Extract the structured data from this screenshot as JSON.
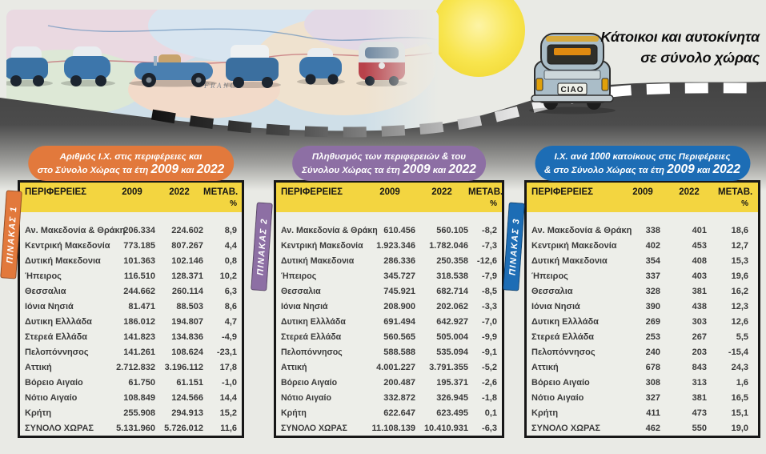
{
  "banner": {
    "title_line1": "Κάτοικοι και αυτοκίνητα",
    "title_line2": "σε σύνολο χώρας",
    "car_plate": "CIAO",
    "map_label": "FRANCE"
  },
  "colors": {
    "header_yellow": "#f3d540",
    "table1_accent": "#e2793c",
    "table2_accent": "#8d6fa4",
    "table3_accent": "#1d6db5"
  },
  "tables": [
    {
      "tab_label": "ΠΙΝΑΚΑΣ 1",
      "accent_color": "#e2793c",
      "title_line1": "Αριθμός Ι.Χ. στις περιφέρειες και",
      "title_line2_prefix": "στο Σύνολο Χώρας τα έτη ",
      "title_year_a": "2009",
      "title_conj": " και ",
      "title_year_b": "2022",
      "columns": {
        "region": "ΠΕΡΙΦΕΡΕΙΕΣ",
        "a": "2009",
        "b": "2022",
        "change": "ΜΕΤΑΒ.",
        "change_unit": "%"
      },
      "rows": [
        {
          "region": "Αν. Μακεδονία & Θράκη",
          "a": "206.334",
          "b": "224.602",
          "change": "8,9"
        },
        {
          "region": "Κεντρική Μακεδονία",
          "a": "773.185",
          "b": "807.267",
          "change": "4,4"
        },
        {
          "region": "Δυτική Μακεδονια",
          "a": "101.363",
          "b": "102.146",
          "change": "0,8"
        },
        {
          "region": "Ήπειρος",
          "a": "116.510",
          "b": "128.371",
          "change": "10,2"
        },
        {
          "region": "Θεσσαλια",
          "a": "244.662",
          "b": "260.114",
          "change": "6,3"
        },
        {
          "region": "Ιόνια Νησιά",
          "a": "81.471",
          "b": "88.503",
          "change": "8,6"
        },
        {
          "region": "Δυτικη Ελλλάδα",
          "a": "186.012",
          "b": "194.807",
          "change": "4,7"
        },
        {
          "region": "Στερεά Ελλάδα",
          "a": "141.823",
          "b": "134.836",
          "change": "-4,9"
        },
        {
          "region": "Πελοπόννησος",
          "a": "141.261",
          "b": "108.624",
          "change": "-23,1"
        },
        {
          "region": "Αττική",
          "a": "2.712.832",
          "b": "3.196.112",
          "change": "17,8"
        },
        {
          "region": "Βόρειο Αιγαίο",
          "a": "61.750",
          "b": "61.151",
          "change": "-1,0"
        },
        {
          "region": "Νότιο Αιγαίο",
          "a": "108.849",
          "b": "124.566",
          "change": "14,4"
        },
        {
          "region": "Κρήτη",
          "a": "255.908",
          "b": "294.913",
          "change": "15,2"
        },
        {
          "region": "ΣΥΝΟΛΟ ΧΩΡΑΣ",
          "a": "5.131.960",
          "b": "5.726.012",
          "change": "11,6"
        }
      ]
    },
    {
      "tab_label": "ΠΙΝΑΚΑΣ 2",
      "accent_color": "#8d6fa4",
      "title_line1": "Πληθυσμός των περιφερειών & του",
      "title_line2_prefix": "Σύνολου Χώρας τα έτη ",
      "title_year_a": "2009",
      "title_conj": " και ",
      "title_year_b": "2022",
      "columns": {
        "region": "ΠΕΡΙΦΕΡΕΙΕΣ",
        "a": "2009",
        "b": "2022",
        "change": "ΜΕΤΑΒ.",
        "change_unit": "%"
      },
      "rows": [
        {
          "region": "Αν. Μακεδονία & Θράκη",
          "a": "610.456",
          "b": "560.105",
          "change": "-8,2"
        },
        {
          "region": "Κεντρική Μακεδονία",
          "a": "1.923.346",
          "b": "1.782.046",
          "change": "-7,3"
        },
        {
          "region": "Δυτική Μακεδονια",
          "a": "286.336",
          "b": "250.358",
          "change": "-12,6"
        },
        {
          "region": "Ήπειρος",
          "a": "345.727",
          "b": "318.538",
          "change": "-7,9"
        },
        {
          "region": "Θεσσαλια",
          "a": "745.921",
          "b": "682.714",
          "change": "-8,5"
        },
        {
          "region": "Ιόνια Νησιά",
          "a": "208.900",
          "b": "202.062",
          "change": "-3,3"
        },
        {
          "region": "Δυτικη Ελλλάδα",
          "a": "691.494",
          "b": "642.927",
          "change": "-7,0"
        },
        {
          "region": "Στερεά Ελλάδα",
          "a": "560.565",
          "b": "505.004",
          "change": "-9,9"
        },
        {
          "region": "Πελοπόννησος",
          "a": "588.588",
          "b": "535.094",
          "change": "-9,1"
        },
        {
          "region": "Αττική",
          "a": "4.001.227",
          "b": "3.791.355",
          "change": "-5,2"
        },
        {
          "region": "Βόρειο Αιγαίο",
          "a": "200.487",
          "b": "195.371",
          "change": "-2,6"
        },
        {
          "region": "Νότιο Αιγαίο",
          "a": "332.872",
          "b": "326.945",
          "change": "-1,8"
        },
        {
          "region": "Κρήτη",
          "a": "622.647",
          "b": "623.495",
          "change": "0,1"
        },
        {
          "region": "ΣΥΝΟΛΟ ΧΩΡΑΣ",
          "a": "11.108.139",
          "b": "10.410.931",
          "change": "-6,3"
        }
      ]
    },
    {
      "tab_label": "ΠΙΝΑΚΑΣ 3",
      "accent_color": "#1d6db5",
      "title_line1": "Ι.Χ. ανά 1000 κατοίκους στις Περιφέρειες",
      "title_line2_prefix": "& στο Σύνολο Χώρας τα έτη ",
      "title_year_a": "2009",
      "title_conj": " και ",
      "title_year_b": "2022",
      "columns": {
        "region": "ΠΕΡΙΦΕΡΕΙΕΣ",
        "a": "2009",
        "b": "2022",
        "change": "ΜΕΤΑΒ.",
        "change_unit": "%"
      },
      "rows": [
        {
          "region": "Αν. Μακεδονία & Θράκη",
          "a": "338",
          "b": "401",
          "change": "18,6"
        },
        {
          "region": "Κεντρική Μακεδονία",
          "a": "402",
          "b": "453",
          "change": "12,7"
        },
        {
          "region": "Δυτική Μακεδονια",
          "a": "354",
          "b": "408",
          "change": "15,3"
        },
        {
          "region": "Ήπειρος",
          "a": "337",
          "b": "403",
          "change": "19,6"
        },
        {
          "region": "Θεσσαλια",
          "a": "328",
          "b": "381",
          "change": "16,2"
        },
        {
          "region": "Ιόνια Νησιά",
          "a": "390",
          "b": "438",
          "change": "12,3"
        },
        {
          "region": "Δυτικη Ελλλάδα",
          "a": "269",
          "b": "303",
          "change": "12,6"
        },
        {
          "region": "Στερεά Ελλάδα",
          "a": "253",
          "b": "267",
          "change": "5,5"
        },
        {
          "region": "Πελοπόννησος",
          "a": "240",
          "b": "203",
          "change": "-15,4"
        },
        {
          "region": "Αττική",
          "a": "678",
          "b": "843",
          "change": "24,3"
        },
        {
          "region": "Βόρειο Αιγαίο",
          "a": "308",
          "b": "313",
          "change": "1,6"
        },
        {
          "region": "Νότιο Αιγαίο",
          "a": "327",
          "b": "381",
          "change": "16,5"
        },
        {
          "region": "Κρήτη",
          "a": "411",
          "b": "473",
          "change": "15,1"
        },
        {
          "region": "ΣΥΝΟΛΟ ΧΩΡΑΣ",
          "a": "462",
          "b": "550",
          "change": "19,0"
        }
      ]
    }
  ]
}
